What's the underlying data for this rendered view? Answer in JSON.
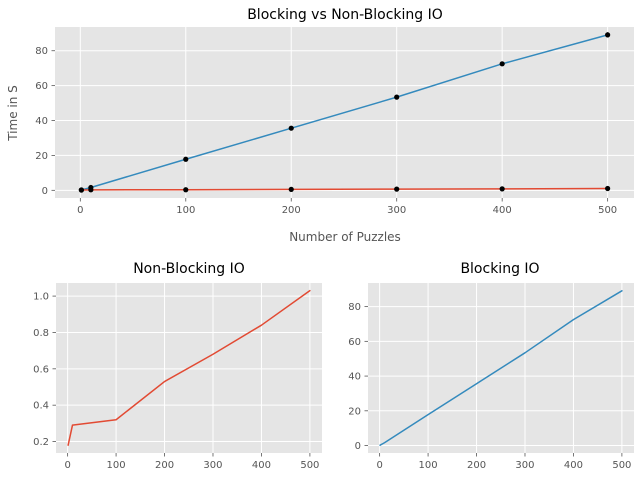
{
  "chart_data": [
    {
      "type": "line",
      "title": "Blocking vs Non-Blocking IO",
      "xlabel": "Number of Puzzles",
      "ylabel": "Time in S",
      "x": [
        1,
        10,
        100,
        200,
        300,
        400,
        500
      ],
      "xlim": [
        -24,
        525
      ],
      "ylim": [
        -4.4,
        93.6
      ],
      "xticks": [
        0,
        100,
        200,
        300,
        400,
        500
      ],
      "yticks": [
        0,
        20,
        40,
        60,
        80
      ],
      "grid": true,
      "markers": true,
      "error_bars": true,
      "series": [
        {
          "values": [
            0.19,
            1.6,
            17.8,
            35.6,
            53.4,
            72.5,
            89.1
          ],
          "color": "#348abd"
        },
        {
          "values": [
            0.18,
            0.29,
            0.32,
            0.53,
            0.68,
            0.84,
            1.03
          ],
          "color": "#e24a33"
        }
      ],
      "errors": [
        0.3,
        0.5,
        0.6,
        0.7,
        0.8,
        1.0,
        1.5
      ]
    },
    {
      "type": "line",
      "title": "Non-Blocking IO",
      "xlabel": "",
      "ylabel": "",
      "x": [
        1,
        10,
        100,
        200,
        300,
        400,
        500
      ],
      "xlim": [
        -24,
        525
      ],
      "ylim": [
        0.137,
        1.072
      ],
      "xticks": [
        0,
        100,
        200,
        300,
        400,
        500
      ],
      "yticks": [
        0.2,
        0.4,
        0.6,
        0.8,
        1.0
      ],
      "ytick_labels": [
        "0.2",
        "0.4",
        "0.6",
        "0.8",
        "1.0"
      ],
      "grid": true,
      "series": [
        {
          "values": [
            0.18,
            0.29,
            0.32,
            0.53,
            0.68,
            0.84,
            1.03
          ],
          "color": "#e24a33"
        }
      ]
    },
    {
      "type": "line",
      "title": "Blocking IO",
      "xlabel": "",
      "ylabel": "",
      "x": [
        1,
        10,
        100,
        200,
        300,
        400,
        500
      ],
      "xlim": [
        -24,
        525
      ],
      "ylim": [
        -4.3,
        93.6
      ],
      "xticks": [
        0,
        100,
        200,
        300,
        400,
        500
      ],
      "yticks": [
        0,
        20,
        40,
        60,
        80
      ],
      "grid": true,
      "series": [
        {
          "values": [
            0.19,
            1.6,
            17.8,
            35.6,
            53.4,
            72.5,
            89.1
          ],
          "color": "#348abd"
        }
      ]
    }
  ],
  "theme": {
    "axes_background": "#e5e5e5",
    "grid_color": "#ffffff",
    "text_color": "#555555",
    "title_color": "#000000",
    "marker_color": "#000000"
  }
}
